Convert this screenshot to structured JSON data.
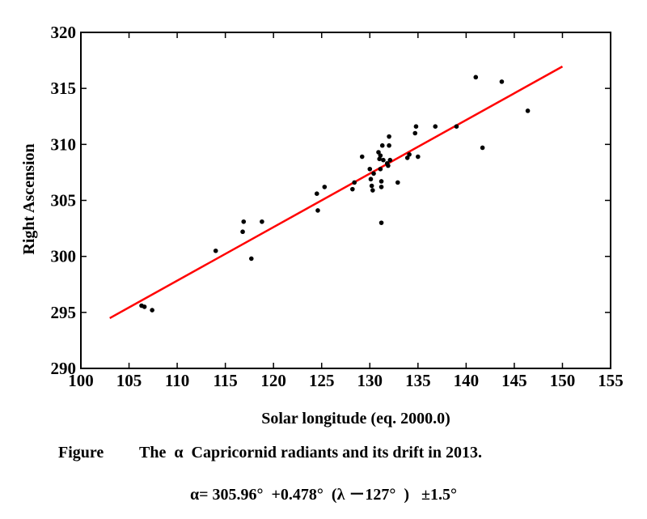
{
  "chart_data": {
    "type": "scatter",
    "title": "",
    "xlabel": "Solar longitude (eq. 2000.0)",
    "ylabel": "Right Ascension",
    "xlim": [
      100,
      155
    ],
    "ylim": [
      290,
      320
    ],
    "x_ticks": [
      "100",
      "105",
      "110",
      "115",
      "120",
      "125",
      "130",
      "135",
      "140",
      "145",
      "150",
      "155"
    ],
    "y_ticks": [
      "290",
      "295",
      "300",
      "305",
      "310",
      "315",
      "320"
    ],
    "grid": false,
    "series": [
      {
        "name": "radiants",
        "color": "#000000",
        "points": [
          [
            106.3,
            295.6
          ],
          [
            106.6,
            295.5
          ],
          [
            107.4,
            295.2
          ],
          [
            114.0,
            300.5
          ],
          [
            116.8,
            302.2
          ],
          [
            116.9,
            303.1
          ],
          [
            117.7,
            299.8
          ],
          [
            118.8,
            303.1
          ],
          [
            124.6,
            304.1
          ],
          [
            124.5,
            305.6
          ],
          [
            125.3,
            306.2
          ],
          [
            128.2,
            306.0
          ],
          [
            128.4,
            306.6
          ],
          [
            129.2,
            308.9
          ],
          [
            130.0,
            307.8
          ],
          [
            130.1,
            306.9
          ],
          [
            130.2,
            306.3
          ],
          [
            130.3,
            305.9
          ],
          [
            130.4,
            307.4
          ],
          [
            130.9,
            309.3
          ],
          [
            131.0,
            308.7
          ],
          [
            131.1,
            309.0
          ],
          [
            131.1,
            307.8
          ],
          [
            131.2,
            306.7
          ],
          [
            131.2,
            306.2
          ],
          [
            131.3,
            309.9
          ],
          [
            131.4,
            308.6
          ],
          [
            131.2,
            303.0
          ],
          [
            131.8,
            308.3
          ],
          [
            131.9,
            308.1
          ],
          [
            132.0,
            310.7
          ],
          [
            132.0,
            309.9
          ],
          [
            132.1,
            308.6
          ],
          [
            132.9,
            306.6
          ],
          [
            133.9,
            308.8
          ],
          [
            134.1,
            309.1
          ],
          [
            134.7,
            311.0
          ],
          [
            134.8,
            311.6
          ],
          [
            135.0,
            308.9
          ],
          [
            136.8,
            311.6
          ],
          [
            139.0,
            311.6
          ],
          [
            141.0,
            316.0
          ],
          [
            141.7,
            309.7
          ],
          [
            143.7,
            315.6
          ],
          [
            146.4,
            313.0
          ]
        ]
      }
    ],
    "fit_line": {
      "color": "#ff0000",
      "x_range": [
        103,
        150
      ],
      "intercept": 305.96,
      "slope": 0.478,
      "pivot": 127
    }
  },
  "caption": {
    "label": "Figure",
    "text": "The  α  Capricornid radiants and its drift in 2013."
  },
  "formula": "α= 305.96°  +0.478°  (λ －127°  )   ±1.5°"
}
